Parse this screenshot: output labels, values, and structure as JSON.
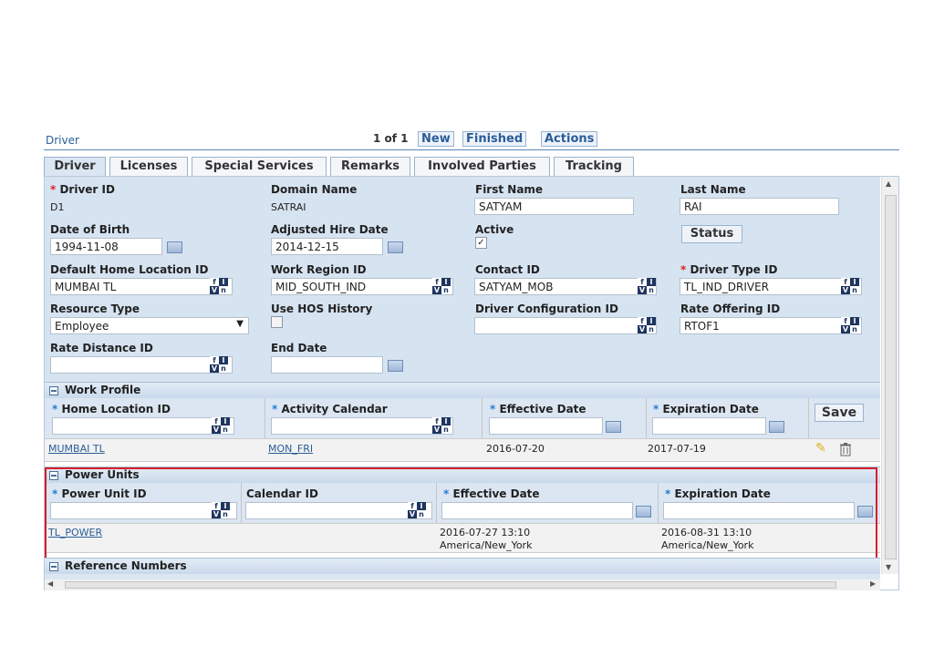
{
  "header": {
    "title": "Driver",
    "pager": "1 of 1",
    "buttons": {
      "new": "New",
      "finished": "Finished",
      "actions": "Actions"
    }
  },
  "tabs": [
    "Driver",
    "Licenses",
    "Special Services",
    "Remarks",
    "Involved Parties",
    "Tracking"
  ],
  "form": {
    "driver_id": {
      "label": "Driver ID",
      "value": "D1"
    },
    "domain_name": {
      "label": "Domain Name",
      "value": "SATRAI"
    },
    "first_name": {
      "label": "First Name",
      "value": "SATYAM"
    },
    "last_name": {
      "label": "Last Name",
      "value": "RAI"
    },
    "dob": {
      "label": "Date of Birth",
      "value": "1994-11-08"
    },
    "adjusted_hire": {
      "label": "Adjusted Hire Date",
      "value": "2014-12-15"
    },
    "active": {
      "label": "Active"
    },
    "status_button": "Status",
    "home_location": {
      "label": "Default Home Location ID",
      "value": "MUMBAI TL"
    },
    "work_region": {
      "label": "Work Region ID",
      "value": "MID_SOUTH_IND"
    },
    "contact_id": {
      "label": "Contact ID",
      "value": "SATYAM_MOB"
    },
    "driver_type": {
      "label": "Driver Type ID",
      "value": "TL_IND_DRIVER"
    },
    "resource_type": {
      "label": "Resource Type",
      "value": "Employee"
    },
    "use_hos": {
      "label": "Use HOS History"
    },
    "driver_config": {
      "label": "Driver Configuration ID",
      "value": ""
    },
    "rate_offering": {
      "label": "Rate Offering ID",
      "value": "RTOF1"
    },
    "rate_distance": {
      "label": "Rate Distance ID",
      "value": ""
    },
    "end_date": {
      "label": "End Date",
      "value": ""
    }
  },
  "work_profile": {
    "title": "Work Profile",
    "columns": [
      "Home Location ID",
      "Activity Calendar",
      "Effective Date",
      "Expiration Date"
    ],
    "save": "Save",
    "row": {
      "home": "MUMBAI TL",
      "calendar": "MON_FRI",
      "effective": "2016-07-20",
      "expiration": "2017-07-19"
    }
  },
  "power_units": {
    "title": "Power Units",
    "columns": [
      "Power Unit ID",
      "Calendar ID",
      "Effective Date",
      "Expiration Date"
    ],
    "row": {
      "unit": "TL_POWER",
      "eff_date": "2016-07-27 13:10",
      "eff_tz": "America/New_York",
      "exp_date": "2016-08-31 13:10",
      "exp_tz": "America/New_York"
    }
  },
  "reference_numbers": {
    "title": "Reference Numbers"
  },
  "colors": {
    "accent": "#2a5d9a",
    "highlight": "#d81e2a",
    "section_bg": "#d6e3f1"
  }
}
